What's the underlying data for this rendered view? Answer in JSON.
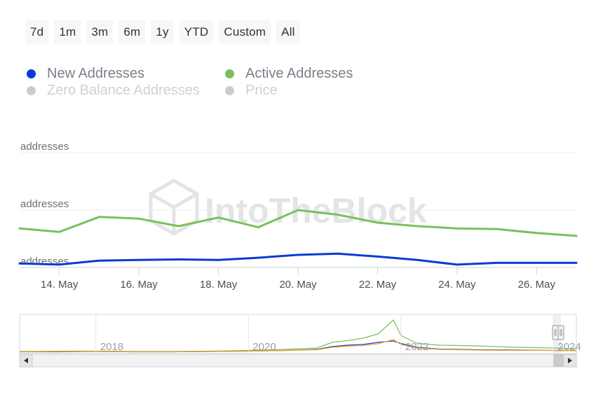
{
  "range_selector": {
    "buttons": [
      {
        "label": "7d"
      },
      {
        "label": "1m"
      },
      {
        "label": "3m"
      },
      {
        "label": "6m"
      },
      {
        "label": "1y"
      },
      {
        "label": "YTD"
      },
      {
        "label": "Custom"
      },
      {
        "label": "All"
      }
    ]
  },
  "legend": {
    "items": [
      {
        "label": "New Addresses",
        "color": "#0b3ad6",
        "visible": true
      },
      {
        "label": "Active Addresses",
        "color": "#7ac05a",
        "visible": true
      },
      {
        "label": "Zero Balance Addresses",
        "color": "#cccccc",
        "visible": false
      },
      {
        "label": "Price",
        "color": "#cccccc",
        "visible": false
      }
    ],
    "placement": "top-left"
  },
  "watermark": {
    "text": "IntoTheBlock"
  },
  "chart_data": [
    {
      "type": "line",
      "title": "",
      "xlabel": "",
      "ylabel": "",
      "y_tick_labels": [
        "addresses",
        "addresses",
        "addresses"
      ],
      "x_tick_labels": [
        "14. May",
        "16. May",
        "18. May",
        "20. May",
        "22. May",
        "24. May",
        "26. May"
      ],
      "x": [
        "13. May",
        "14. May",
        "15. May",
        "16. May",
        "17. May",
        "18. May",
        "19. May",
        "20. May",
        "21. May",
        "22. May",
        "23. May",
        "24. May",
        "25. May",
        "26. May",
        "27. May"
      ],
      "ylim": [
        0,
        2
      ],
      "grid": true,
      "series": [
        {
          "name": "New Addresses",
          "color": "#0b3ad6",
          "values": [
            0.07,
            0.05,
            0.12,
            0.13,
            0.14,
            0.13,
            0.17,
            0.22,
            0.24,
            0.19,
            0.13,
            0.05,
            0.08,
            0.08,
            0.08
          ]
        },
        {
          "name": "Active Addresses",
          "color": "#7ac05a",
          "values": [
            0.68,
            0.62,
            0.88,
            0.85,
            0.72,
            0.87,
            0.7,
            1.0,
            0.92,
            0.78,
            0.72,
            0.68,
            0.67,
            0.6,
            0.55
          ]
        }
      ]
    },
    {
      "type": "line",
      "title": "",
      "x_tick_labels": [
        "2018",
        "2020",
        "2022",
        "2024"
      ],
      "x": [
        2017.0,
        2017.5,
        2018.0,
        2018.5,
        2019.0,
        2019.5,
        2020.0,
        2020.5,
        2020.9,
        2021.1,
        2021.3,
        2021.5,
        2021.7,
        2021.9,
        2022.0,
        2022.2,
        2022.5,
        2023.0,
        2023.5,
        2024.0,
        2024.3
      ],
      "ylim": [
        0,
        100
      ],
      "series": [
        {
          "name": "Active Addresses",
          "color": "#7ac05a",
          "values": [
            2,
            3,
            3,
            2,
            2,
            3,
            5,
            8,
            12,
            28,
            33,
            40,
            52,
            92,
            48,
            26,
            20,
            18,
            14,
            12,
            10
          ]
        },
        {
          "name": "New Addresses",
          "color": "#0b3ad6",
          "values": [
            1,
            1,
            2,
            1,
            1,
            2,
            3,
            5,
            8,
            16,
            20,
            22,
            28,
            32,
            25,
            14,
            9,
            7,
            6,
            5,
            4
          ]
        },
        {
          "name": "Price",
          "color": "#f5a623",
          "values": [
            1,
            2,
            2,
            1,
            1,
            2,
            3,
            5,
            7,
            14,
            17,
            19,
            24,
            36,
            22,
            12,
            8,
            6,
            5,
            5,
            4
          ]
        }
      ],
      "selected_range": [
        "13. May",
        "27. May"
      ]
    }
  ]
}
